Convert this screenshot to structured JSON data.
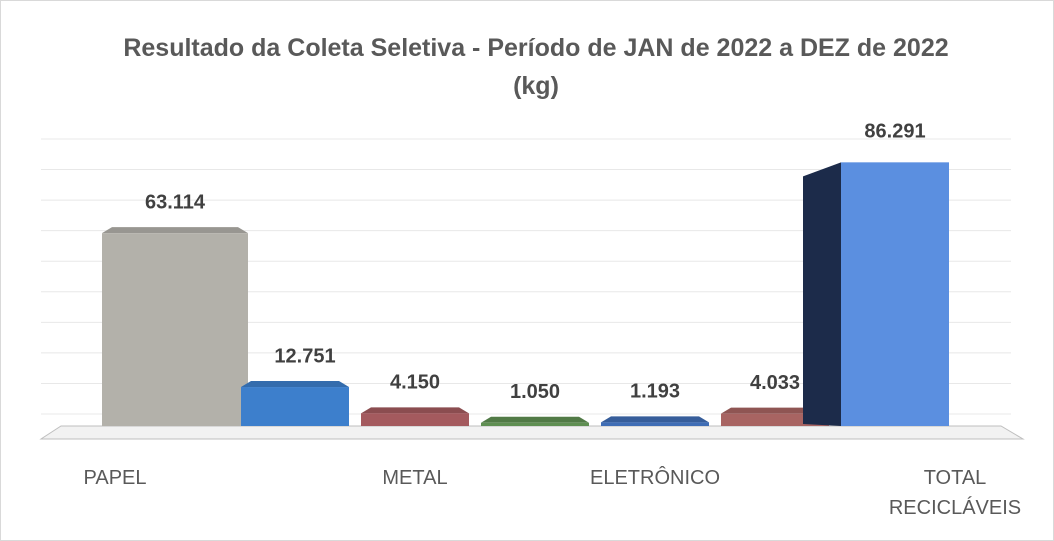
{
  "chart_data": {
    "type": "bar3d",
    "title": "Resultado da Coleta Seletiva - Período de JAN de 2022 a DEZ de 2022 (kg)",
    "categories": [
      "PAPEL",
      null,
      "METAL",
      null,
      "ELETRÔNICO",
      null,
      "TOTAL RECICLÁVEIS"
    ],
    "values": [
      63114,
      12751,
      4150,
      1050,
      1193,
      4033,
      86291
    ],
    "value_labels": [
      "63.114",
      "12.751",
      "4.150",
      "1.050",
      "1.193",
      "4.033",
      "86.291"
    ],
    "colors": [
      "#b3b1aa",
      "#3d7fcc",
      "#a45a5e",
      "#5f8f52",
      "#3f6db5",
      "#a86462",
      "#5b8fe0"
    ],
    "ylim": [
      0,
      90000
    ],
    "yticks": [
      0,
      10000,
      20000,
      30000,
      40000,
      50000,
      60000,
      70000,
      80000,
      90000
    ],
    "grid": true
  }
}
